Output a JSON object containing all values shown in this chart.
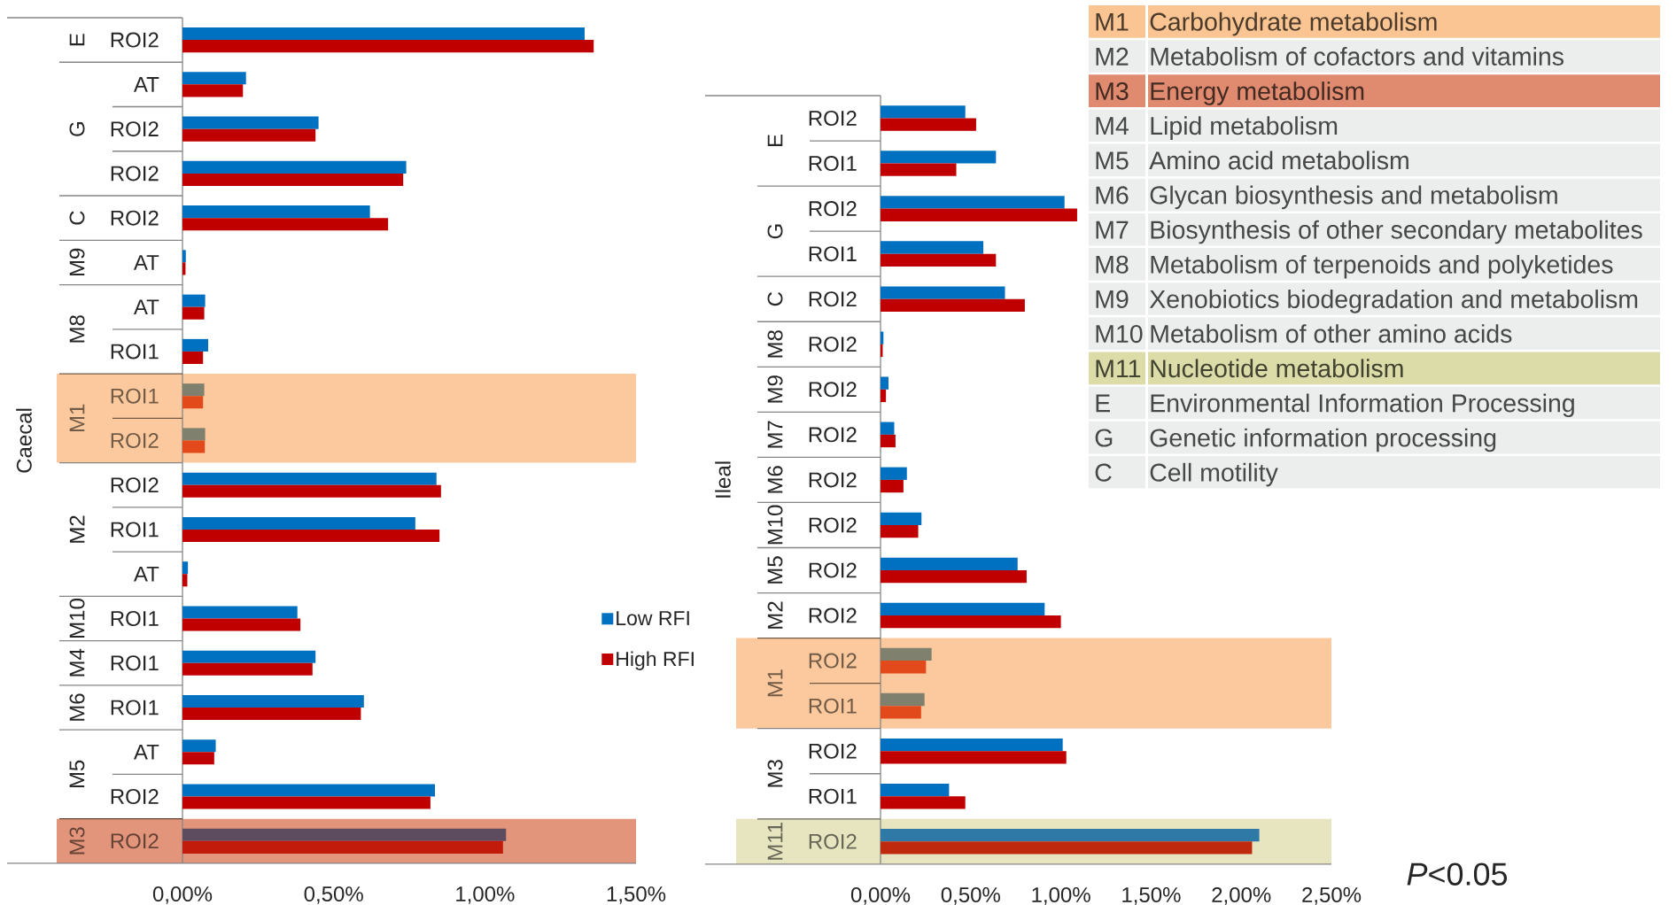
{
  "chart_data": [
    {
      "type": "bar",
      "orientation": "horizontal",
      "ylabel": "E",
      "categories": [
        "ROI2"
      ],
      "series": [
        {
          "color": "#0070c0",
          "values": [
            1.33
          ]
        },
        {
          "color": "#c00000",
          "values": [
            1.36
          ]
        }
      ],
      "xlim": [
        0,
        1.5
      ],
      "tick_labels": "y"
    },
    {
      "type": "bar",
      "orientation": "horizontal",
      "ylabel": "G",
      "categories": [
        "AT",
        "ROI2",
        "ROI2"
      ],
      "series": [
        {
          "color": "#0070c0",
          "values": [
            0.21,
            0.45,
            0.74
          ]
        },
        {
          "color": "#c00000",
          "values": [
            0.2,
            0.44,
            0.73
          ]
        }
      ],
      "xlim": [
        0,
        1.5
      ],
      "tick_labels": "y"
    },
    {
      "type": "bar",
      "orientation": "horizontal",
      "ylabel": "C",
      "categories": [
        "ROI2"
      ],
      "series": [
        {
          "color": "#0070c0",
          "values": [
            0.62
          ]
        },
        {
          "color": "#c00000",
          "values": [
            0.68
          ]
        }
      ],
      "xlim": [
        0,
        1.5
      ],
      "tick_labels": "y"
    },
    {
      "type": "bar",
      "orientation": "horizontal",
      "ylabel": "M9",
      "categories": [
        "AT"
      ],
      "series": [
        {
          "color": "#0070c0",
          "values": [
            0.011
          ]
        },
        {
          "color": "#c00000",
          "values": [
            0.01
          ]
        }
      ],
      "xlim": [
        0,
        1.5
      ],
      "tick_labels": "y"
    },
    {
      "type": "bar",
      "orientation": "horizontal",
      "ylabel": "M8",
      "categories": [
        "AT",
        "ROI1"
      ],
      "series": [
        {
          "color": "#0070c0",
          "values": [
            0.075,
            0.085
          ]
        },
        {
          "color": "#c00000",
          "values": [
            0.072,
            0.068
          ]
        }
      ],
      "xlim": [
        0,
        1.5
      ],
      "tick_labels": "y"
    },
    {
      "type": "bar",
      "orientation": "horizontal",
      "ylabel": "M1",
      "categories": [
        "ROI1",
        "ROI2"
      ],
      "series": [
        {
          "color": "#80806f",
          "values": [
            0.072,
            0.075
          ]
        },
        {
          "color": "#e2491b",
          "values": [
            0.068,
            0.074
          ]
        }
      ],
      "xlim": [
        0,
        1.5
      ],
      "tick_labels": "y",
      "bands": [
        {
          "axis": "y",
          "from": "ROI1",
          "to": "ROI2",
          "color": "#fbc99d"
        }
      ],
      "annotations": [
        "Caecal"
      ]
    },
    {
      "type": "bar",
      "orientation": "horizontal",
      "ylabel": "M2",
      "categories": [
        "ROI2",
        "ROI1",
        "AT"
      ],
      "series": [
        {
          "color": "#0070c0",
          "values": [
            0.84,
            0.77,
            0.018
          ]
        },
        {
          "color": "#c00000",
          "values": [
            0.855,
            0.85,
            0.016
          ]
        }
      ],
      "xlim": [
        0,
        1.5
      ],
      "tick_labels": "y"
    },
    {
      "type": "bar",
      "orientation": "horizontal",
      "ylabel": "M10",
      "categories": [
        "ROI1"
      ],
      "series": [
        {
          "name": "Low RFI",
          "color": "#0070c0",
          "values": [
            0.38
          ]
        },
        {
          "name": "High RFI",
          "color": "#c00000",
          "values": [
            0.39
          ]
        }
      ],
      "xlim": [
        0,
        1.5
      ],
      "tick_labels": "y",
      "legend": "right"
    },
    {
      "type": "bar",
      "orientation": "horizontal",
      "ylabel": "M4",
      "categories": [
        "ROI1"
      ],
      "series": [
        {
          "color": "#0070c0",
          "values": [
            0.44
          ]
        },
        {
          "color": "#c00000",
          "values": [
            0.43
          ]
        }
      ],
      "xlim": [
        0,
        1.5
      ],
      "tick_labels": "y"
    },
    {
      "type": "bar",
      "orientation": "horizontal",
      "ylabel": "M6",
      "categories": [
        "ROI1"
      ],
      "series": [
        {
          "color": "#0070c0",
          "values": [
            0.6
          ]
        },
        {
          "color": "#c00000",
          "values": [
            0.59
          ]
        }
      ],
      "xlim": [
        0,
        1.5
      ],
      "tick_labels": "y"
    },
    {
      "type": "bar",
      "orientation": "horizontal",
      "ylabel": "M5",
      "categories": [
        "AT",
        "ROI2"
      ],
      "series": [
        {
          "color": "#0070c0",
          "values": [
            0.11,
            0.835
          ]
        },
        {
          "color": "#c00000",
          "values": [
            0.105,
            0.82
          ]
        }
      ],
      "xlim": [
        0,
        1.5
      ],
      "tick_labels": "y"
    },
    {
      "type": "bar",
      "orientation": "horizontal",
      "ylabel": "M3",
      "categories": [
        "ROI2"
      ],
      "series": [
        {
          "color": "#5d4b60",
          "values": [
            1.07
          ]
        },
        {
          "color": "#c21b0b",
          "values": [
            1.06
          ]
        }
      ],
      "xlim": [
        0,
        1.5
      ],
      "xticks": [
        {
          "value": 0,
          "label": "0,00%"
        },
        {
          "value": 0.5,
          "label": "0,50%"
        },
        {
          "value": 1,
          "label": "1,00%"
        },
        {
          "value": 1.5,
          "label": "1,50%"
        }
      ],
      "bands": [
        {
          "axis": "y",
          "from": "ROI2",
          "to": "ROI2",
          "color": "#e3957b"
        }
      ]
    },
    {
      "type": "bar",
      "orientation": "horizontal",
      "ylabel": "E",
      "categories": [
        "ROI2",
        "ROI1"
      ],
      "series": [
        {
          "color": "#0070c0",
          "values": [
            0.47,
            0.64
          ]
        },
        {
          "color": "#c00000",
          "values": [
            0.53,
            0.42
          ]
        }
      ],
      "xlim": [
        0,
        2.5
      ],
      "tick_labels": "y"
    },
    {
      "type": "bar",
      "orientation": "horizontal",
      "ylabel": "G",
      "categories": [
        "ROI2",
        "ROI1"
      ],
      "series": [
        {
          "color": "#0070c0",
          "values": [
            1.02,
            0.57
          ]
        },
        {
          "color": "#c00000",
          "values": [
            1.09,
            0.64
          ]
        }
      ],
      "xlim": [
        0,
        2.5
      ],
      "tick_labels": "y"
    },
    {
      "type": "bar",
      "orientation": "horizontal",
      "ylabel": "C",
      "categories": [
        "ROI2"
      ],
      "series": [
        {
          "color": "#0070c0",
          "values": [
            0.69
          ]
        },
        {
          "color": "#c00000",
          "values": [
            0.8
          ]
        }
      ],
      "xlim": [
        0,
        2.5
      ],
      "tick_labels": "y"
    },
    {
      "type": "bar",
      "orientation": "horizontal",
      "ylabel": "M8",
      "categories": [
        "ROI2"
      ],
      "series": [
        {
          "color": "#0070c0",
          "values": [
            0.016
          ]
        },
        {
          "color": "#c00000",
          "values": [
            0.012
          ]
        }
      ],
      "xlim": [
        0,
        2.5
      ],
      "tick_labels": "y"
    },
    {
      "type": "bar",
      "orientation": "horizontal",
      "ylabel": "M9",
      "categories": [
        "ROI2"
      ],
      "series": [
        {
          "color": "#0070c0",
          "values": [
            0.044
          ]
        },
        {
          "color": "#c00000",
          "values": [
            0.03
          ]
        }
      ],
      "xlim": [
        0,
        2.5
      ],
      "tick_labels": "y"
    },
    {
      "type": "bar",
      "orientation": "horizontal",
      "ylabel": "M7",
      "categories": [
        "ROI2"
      ],
      "series": [
        {
          "color": "#0070c0",
          "values": [
            0.076
          ]
        },
        {
          "color": "#c00000",
          "values": [
            0.083
          ]
        }
      ],
      "xlim": [
        0,
        2.5
      ],
      "tick_labels": "y"
    },
    {
      "type": "bar",
      "orientation": "horizontal",
      "ylabel": "M6",
      "categories": [
        "ROI2"
      ],
      "series": [
        {
          "color": "#0070c0",
          "values": [
            0.146
          ]
        },
        {
          "color": "#c00000",
          "values": [
            0.127
          ]
        }
      ],
      "xlim": [
        0,
        2.5
      ],
      "tick_labels": "y",
      "annotations": [
        "Ileal"
      ]
    },
    {
      "type": "bar",
      "orientation": "horizontal",
      "ylabel": "M10",
      "categories": [
        "ROI2"
      ],
      "series": [
        {
          "color": "#0070c0",
          "values": [
            0.227
          ]
        },
        {
          "color": "#c00000",
          "values": [
            0.209
          ]
        }
      ],
      "xlim": [
        0,
        2.5
      ],
      "tick_labels": "y"
    },
    {
      "type": "bar",
      "orientation": "horizontal",
      "ylabel": "M5",
      "categories": [
        "ROI2"
      ],
      "series": [
        {
          "color": "#0070c0",
          "values": [
            0.76
          ]
        },
        {
          "color": "#c00000",
          "values": [
            0.81
          ]
        }
      ],
      "xlim": [
        0,
        2.5
      ],
      "tick_labels": "y"
    },
    {
      "type": "bar",
      "orientation": "horizontal",
      "ylabel": "M2",
      "categories": [
        "ROI2"
      ],
      "series": [
        {
          "color": "#0070c0",
          "values": [
            0.91
          ]
        },
        {
          "color": "#c00000",
          "values": [
            1.0
          ]
        }
      ],
      "xlim": [
        0,
        2.5
      ],
      "tick_labels": "y"
    },
    {
      "type": "bar",
      "orientation": "horizontal",
      "ylabel": "M1",
      "categories": [
        "ROI2",
        "ROI1"
      ],
      "series": [
        {
          "color": "#80806f",
          "values": [
            0.283,
            0.244
          ]
        },
        {
          "color": "#e2491b",
          "values": [
            0.252,
            0.225
          ]
        }
      ],
      "xlim": [
        0,
        2.5
      ],
      "tick_labels": "y",
      "bands": [
        {
          "axis": "y",
          "from": "ROI2",
          "to": "ROI1",
          "color": "#fbc99d"
        }
      ]
    },
    {
      "type": "bar",
      "orientation": "horizontal",
      "ylabel": "M3",
      "categories": [
        "ROI2",
        "ROI1"
      ],
      "series": [
        {
          "color": "#0070c0",
          "values": [
            1.01,
            0.38
          ]
        },
        {
          "color": "#c00000",
          "values": [
            1.03,
            0.47
          ]
        }
      ],
      "xlim": [
        0,
        2.5
      ],
      "tick_labels": "y"
    },
    {
      "type": "bar",
      "orientation": "horizontal",
      "ylabel": "M11",
      "categories": [
        "ROI2"
      ],
      "series": [
        {
          "color": "#2e79a6",
          "values": [
            2.1
          ]
        },
        {
          "color": "#bf2a0e",
          "values": [
            2.06
          ]
        }
      ],
      "xlim": [
        0,
        2.5
      ],
      "xticks": [
        {
          "value": 0,
          "label": "0,00%"
        },
        {
          "value": 0.5,
          "label": "0,50%"
        },
        {
          "value": 1,
          "label": "1,00%"
        },
        {
          "value": 1.5,
          "label": "1,50%"
        },
        {
          "value": 2,
          "label": "2,00%"
        },
        {
          "value": 2.5,
          "label": "2,50%"
        }
      ],
      "bands": [
        {
          "axis": "y",
          "from": "ROI2",
          "to": "ROI2",
          "color": "#e6e5c0"
        }
      ],
      "annotations": [
        "*P*<0.05"
      ]
    },
    {
      "type": "other",
      "categories": [
        "M1",
        "M2",
        "M3",
        "M4",
        "M5",
        "M6",
        "M7",
        "M8",
        "M9",
        "M10",
        "M11",
        "E",
        "G",
        "C"
      ],
      "annotations": [
        "Carbohydrate metabolism",
        "Metabolism of cofactors and vitamins",
        "Energy metabolism",
        "Lipid metabolism",
        "Amino acid metabolism",
        "Glycan biosynthesis and metabolism",
        "Biosynthesis of other secondary metabolites",
        "Metabolism of terpenoids and polyketides",
        "Xenobiotics biodegradation and metabolism",
        "Metabolism of other amino acids",
        "Nucleotide metabolism",
        "Environmental Information Processing",
        "Genetic information processing",
        "Cell motility"
      ],
      "colors": [
        "#fac593",
        "#eceeee",
        "#e08b70",
        "#eceeee",
        "#eceeee",
        "#eceeee",
        "#eceeee",
        "#eceeee",
        "#eceeee",
        "#eceeee",
        "#dcdca8",
        "#eceeee",
        "#eceeee",
        "#eceeee"
      ]
    }
  ]
}
